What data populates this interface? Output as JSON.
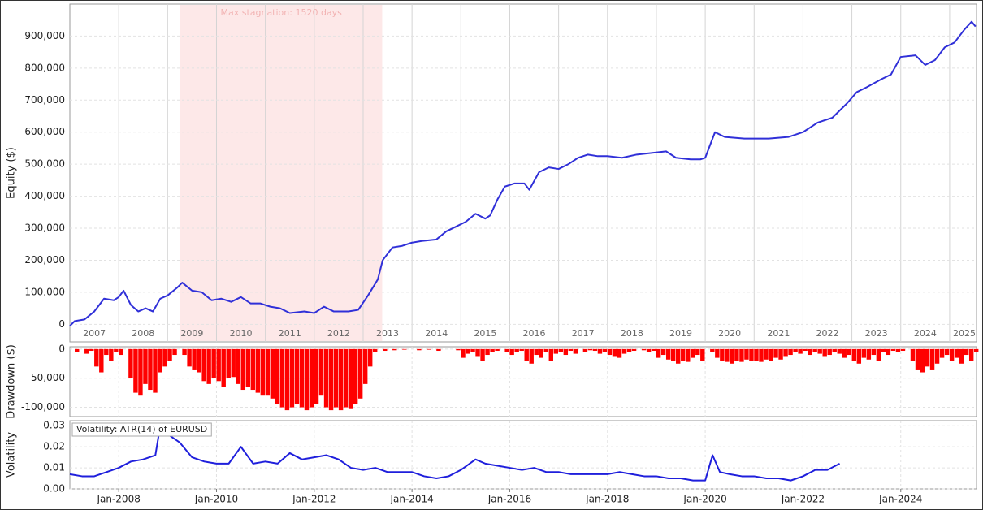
{
  "chart_data": [
    {
      "type": "line",
      "ylabel": "Equity ($)",
      "x": [
        2007.0,
        2007.1,
        2007.3,
        2007.5,
        2007.7,
        2007.9,
        2008.0,
        2008.1,
        2008.25,
        2008.4,
        2008.55,
        2008.7,
        2008.85,
        2009.0,
        2009.2,
        2009.3,
        2009.5,
        2009.7,
        2009.9,
        2010.1,
        2010.3,
        2010.5,
        2010.7,
        2010.9,
        2011.1,
        2011.3,
        2011.5,
        2011.8,
        2012.0,
        2012.2,
        2012.4,
        2012.7,
        2012.9,
        2013.1,
        2013.3,
        2013.4,
        2013.6,
        2013.8,
        2014.0,
        2014.2,
        2014.5,
        2014.7,
        2014.9,
        2015.1,
        2015.3,
        2015.5,
        2015.6,
        2015.75,
        2015.9,
        2016.1,
        2016.3,
        2016.4,
        2016.6,
        2016.8,
        2017.0,
        2017.2,
        2017.4,
        2017.6,
        2017.8,
        2018.0,
        2018.3,
        2018.6,
        2018.9,
        2019.2,
        2019.4,
        2019.7,
        2019.9,
        2020.0,
        2020.2,
        2020.4,
        2020.8,
        2021.3,
        2021.7,
        2022.0,
        2022.3,
        2022.6,
        2022.9,
        2023.1,
        2023.3,
        2023.6,
        2023.8,
        2024.0,
        2024.3,
        2024.5,
        2024.7,
        2024.9,
        2025.1,
        2025.3,
        2025.45,
        2025.53
      ],
      "series": [
        {
          "color": "#3030d8",
          "values": [
            -5000,
            10000,
            15000,
            40000,
            80000,
            75000,
            85000,
            105000,
            60000,
            40000,
            50000,
            40000,
            80000,
            90000,
            115000,
            130000,
            105000,
            100000,
            75000,
            80000,
            70000,
            85000,
            65000,
            65000,
            55000,
            50000,
            35000,
            40000,
            35000,
            55000,
            40000,
            40000,
            45000,
            90000,
            140000,
            200000,
            240000,
            245000,
            255000,
            260000,
            265000,
            290000,
            305000,
            320000,
            345000,
            330000,
            340000,
            390000,
            430000,
            440000,
            440000,
            420000,
            475000,
            490000,
            485000,
            500000,
            520000,
            530000,
            525000,
            525000,
            520000,
            530000,
            535000,
            540000,
            520000,
            515000,
            515000,
            520000,
            600000,
            585000,
            580000,
            580000,
            585000,
            600000,
            630000,
            645000,
            690000,
            725000,
            740000,
            765000,
            780000,
            835000,
            840000,
            810000,
            825000,
            865000,
            880000,
            920000,
            945000,
            930000
          ]
        }
      ],
      "xlim": [
        2007.0,
        2025.55
      ],
      "ylim": [
        -55000,
        1000000
      ],
      "yticks": [
        0,
        {
          "value": 100000,
          "label": "100,000"
        },
        {
          "value": 200000,
          "label": "200,000"
        },
        {
          "value": 300000,
          "label": "300,000"
        },
        {
          "value": 400000,
          "label": "400,000"
        },
        {
          "value": 500000,
          "label": "500,000"
        },
        {
          "value": 600000,
          "label": "600,000"
        },
        {
          "value": 700000,
          "label": "700,000"
        },
        {
          "value": 800000,
          "label": "800,000"
        },
        {
          "value": 900000,
          "label": "900,000"
        }
      ],
      "xticks": [
        {
          "value": 2007.5,
          "label": "2007"
        },
        {
          "value": 2008.5,
          "label": "2008"
        },
        {
          "value": 2009.5,
          "label": "2009"
        },
        {
          "value": 2010.5,
          "label": "2010"
        },
        {
          "value": 2011.5,
          "label": "2011"
        },
        {
          "value": 2012.5,
          "label": "2012"
        },
        {
          "value": 2013.5,
          "label": "2013"
        },
        {
          "value": 2014.5,
          "label": "2014"
        },
        {
          "value": 2015.5,
          "label": "2015"
        },
        {
          "value": 2016.5,
          "label": "2016"
        },
        {
          "value": 2017.5,
          "label": "2017"
        },
        {
          "value": 2018.5,
          "label": "2018"
        },
        {
          "value": 2019.5,
          "label": "2019"
        },
        {
          "value": 2020.5,
          "label": "2020"
        },
        {
          "value": 2021.5,
          "label": "2021"
        },
        {
          "value": 2022.5,
          "label": "2022"
        },
        {
          "value": 2023.5,
          "label": "2023"
        },
        {
          "value": 2024.5,
          "label": "2024"
        },
        {
          "value": 2025.3,
          "label": "2025"
        }
      ],
      "xgrid": [
        2008,
        2009,
        2010,
        2011,
        2012,
        2013,
        2014,
        2015,
        2016,
        2017,
        2018,
        2019,
        2020,
        2021,
        2022,
        2023,
        2024,
        2025
      ],
      "stagnation": {
        "label": "Max stagnation: 1520 days",
        "xrange": [
          2009.26,
          2013.39
        ],
        "color": "#fde8e8"
      },
      "grid": true
    },
    {
      "type": "bar",
      "ylabel": "Drawdown ($)",
      "color": "#ff0000",
      "x": [
        2007.0,
        2007.1,
        2007.2,
        2007.3,
        2007.4,
        2007.5,
        2007.6,
        2007.7,
        2007.8,
        2007.9,
        2008.0,
        2008.1,
        2008.2,
        2008.3,
        2008.4,
        2008.5,
        2008.6,
        2008.7,
        2008.8,
        2008.9,
        2009.0,
        2009.1,
        2009.2,
        2009.3,
        2009.4,
        2009.5,
        2009.6,
        2009.7,
        2009.8,
        2009.9,
        2010.0,
        2010.1,
        2010.2,
        2010.3,
        2010.4,
        2010.5,
        2010.6,
        2010.7,
        2010.8,
        2010.9,
        2011.0,
        2011.1,
        2011.2,
        2011.3,
        2011.4,
        2011.5,
        2011.6,
        2011.7,
        2011.8,
        2011.9,
        2012.0,
        2012.1,
        2012.2,
        2012.3,
        2012.4,
        2012.5,
        2012.6,
        2012.7,
        2012.8,
        2012.9,
        2013.0,
        2013.1,
        2013.2,
        2013.3,
        2013.4,
        2013.5,
        2013.6,
        2013.7,
        2013.8,
        2013.9,
        2014.0,
        2014.1,
        2014.2,
        2014.3,
        2014.4,
        2014.5,
        2014.6,
        2014.7,
        2014.8,
        2014.9,
        2015.0,
        2015.1,
        2015.2,
        2015.3,
        2015.4,
        2015.5,
        2015.6,
        2015.7,
        2015.8,
        2015.9,
        2016.0,
        2016.1,
        2016.2,
        2016.3,
        2016.4,
        2016.5,
        2016.6,
        2016.7,
        2016.8,
        2016.9,
        2017.0,
        2017.1,
        2017.2,
        2017.3,
        2017.4,
        2017.5,
        2017.6,
        2017.7,
        2017.8,
        2017.9,
        2018.0,
        2018.1,
        2018.2,
        2018.3,
        2018.4,
        2018.5,
        2018.6,
        2018.7,
        2018.8,
        2018.9,
        2019.0,
        2019.1,
        2019.2,
        2019.3,
        2019.4,
        2019.5,
        2019.6,
        2019.7,
        2019.8,
        2019.9,
        2020.0,
        2020.1,
        2020.2,
        2020.3,
        2020.4,
        2020.5,
        2020.6,
        2020.7,
        2020.8,
        2020.9,
        2021.0,
        2021.1,
        2021.2,
        2021.3,
        2021.4,
        2021.5,
        2021.6,
        2021.7,
        2021.8,
        2021.9,
        2022.0,
        2022.1,
        2022.2,
        2022.3,
        2022.4,
        2022.5,
        2022.6,
        2022.7,
        2022.8,
        2022.9,
        2023.0,
        2023.1,
        2023.2,
        2023.3,
        2023.4,
        2023.5,
        2023.6,
        2023.7,
        2023.8,
        2023.9,
        2024.0,
        2024.1,
        2024.2,
        2024.3,
        2024.4,
        2024.5,
        2024.6,
        2024.7,
        2024.8,
        2024.9,
        2025.0,
        2025.1,
        2025.2,
        2025.3,
        2025.4,
        2025.5
      ],
      "values": [
        0,
        -5000,
        0,
        -8000,
        -3000,
        -30000,
        -40000,
        -10000,
        -20000,
        -5000,
        -10000,
        0,
        -50000,
        -75000,
        -80000,
        -60000,
        -70000,
        -75000,
        -40000,
        -30000,
        -20000,
        -10000,
        0,
        -10000,
        -30000,
        -35000,
        -40000,
        -55000,
        -60000,
        -50000,
        -55000,
        -65000,
        -50000,
        -48000,
        -60000,
        -70000,
        -65000,
        -70000,
        -75000,
        -80000,
        -80000,
        -85000,
        -95000,
        -100000,
        -105000,
        -100000,
        -95000,
        -100000,
        -105000,
        -100000,
        -95000,
        -80000,
        -100000,
        -105000,
        -100000,
        -105000,
        -100000,
        -103000,
        -95000,
        -85000,
        -60000,
        -30000,
        -5000,
        0,
        -3000,
        0,
        -2000,
        0,
        -1000,
        0,
        0,
        -2000,
        0,
        -1000,
        0,
        -3000,
        0,
        0,
        0,
        -2000,
        -15000,
        -8000,
        -5000,
        -12000,
        -20000,
        -10000,
        -5000,
        -3000,
        0,
        -5000,
        -10000,
        -5000,
        -3000,
        -20000,
        -25000,
        -10000,
        -15000,
        -5000,
        -20000,
        -8000,
        -5000,
        -10000,
        -3000,
        -8000,
        0,
        -5000,
        -2000,
        -3000,
        -8000,
        -5000,
        -10000,
        -12000,
        -15000,
        -8000,
        -5000,
        -3000,
        0,
        -2000,
        -5000,
        -3000,
        -15000,
        -10000,
        -18000,
        -20000,
        -25000,
        -20000,
        -22000,
        -15000,
        -10000,
        -20000,
        0,
        -5000,
        -15000,
        -20000,
        -22000,
        -25000,
        -20000,
        -22000,
        -18000,
        -20000,
        -20000,
        -22000,
        -18000,
        -20000,
        -15000,
        -18000,
        -12000,
        -10000,
        -5000,
        -8000,
        -3000,
        -10000,
        -5000,
        -8000,
        -12000,
        -10000,
        -5000,
        -8000,
        -15000,
        -10000,
        -20000,
        -25000,
        -15000,
        -18000,
        -10000,
        -20000,
        -5000,
        -10000,
        -3000,
        -5000,
        -3000,
        0,
        -20000,
        -35000,
        -40000,
        -30000,
        -35000,
        -25000,
        -15000,
        -10000,
        -20000,
        -15000,
        -25000,
        -10000,
        -20000,
        -5000
      ],
      "xlim": [
        2007.0,
        2025.55
      ],
      "ylim": [
        -116000,
        4000
      ],
      "yticks": [
        {
          "value": -100000,
          "label": "-100,000"
        },
        {
          "value": -50000,
          "label": "-50,000"
        },
        0
      ],
      "grid": true
    },
    {
      "type": "line",
      "ylabel": "Volatility",
      "x": [
        2007.0,
        2007.25,
        2007.5,
        2007.75,
        2008.0,
        2008.25,
        2008.5,
        2008.75,
        2008.85,
        2009.0,
        2009.25,
        2009.5,
        2009.75,
        2010.0,
        2010.25,
        2010.5,
        2010.75,
        2011.0,
        2011.25,
        2011.5,
        2011.75,
        2012.0,
        2012.25,
        2012.5,
        2012.75,
        2013.0,
        2013.25,
        2013.5,
        2013.75,
        2014.0,
        2014.25,
        2014.5,
        2014.75,
        2015.0,
        2015.3,
        2015.5,
        2015.75,
        2016.0,
        2016.25,
        2016.5,
        2016.75,
        2017.0,
        2017.25,
        2017.5,
        2017.75,
        2018.0,
        2018.25,
        2018.5,
        2018.75,
        2019.0,
        2019.25,
        2019.5,
        2019.75,
        2020.0,
        2020.15,
        2020.3,
        2020.5,
        2020.75,
        2021.0,
        2021.25,
        2021.5,
        2021.75,
        2022.0,
        2022.25,
        2022.5,
        2022.75
      ],
      "series": [
        {
          "name": "Volatility: ATR(14) of EURUSD",
          "color": "#1f1fdc",
          "values": [
            0.007,
            0.006,
            0.006,
            0.008,
            0.01,
            0.013,
            0.014,
            0.016,
            0.03,
            0.026,
            0.022,
            0.015,
            0.013,
            0.012,
            0.012,
            0.02,
            0.012,
            0.013,
            0.012,
            0.017,
            0.014,
            0.015,
            0.016,
            0.014,
            0.01,
            0.009,
            0.01,
            0.008,
            0.008,
            0.008,
            0.006,
            0.005,
            0.006,
            0.009,
            0.014,
            0.012,
            0.011,
            0.01,
            0.009,
            0.01,
            0.008,
            0.008,
            0.007,
            0.007,
            0.007,
            0.007,
            0.008,
            0.007,
            0.006,
            0.006,
            0.005,
            0.005,
            0.004,
            0.004,
            0.016,
            0.008,
            0.007,
            0.006,
            0.006,
            0.005,
            0.005,
            0.004,
            0.006,
            0.009,
            0.009,
            0.012
          ]
        }
      ],
      "xlim": [
        2007.0,
        2025.55
      ],
      "ylim": [
        0,
        0.0324
      ],
      "yticks": [
        {
          "value": 0,
          "label": "0.00"
        },
        0.01,
        0.02,
        0.03
      ],
      "xticks": [
        {
          "value": 2008,
          "label": "Jan-2008"
        },
        {
          "value": 2010,
          "label": "Jan-2010"
        },
        {
          "value": 2012,
          "label": "Jan-2012"
        },
        {
          "value": 2014,
          "label": "Jan-2014"
        },
        {
          "value": 2016,
          "label": "Jan-2016"
        },
        {
          "value": 2018,
          "label": "Jan-2018"
        },
        {
          "value": 2020,
          "label": "Jan-2020"
        },
        {
          "value": 2022,
          "label": "Jan-2022"
        },
        {
          "value": 2024,
          "label": "Jan-2024"
        }
      ],
      "grid": true
    }
  ]
}
